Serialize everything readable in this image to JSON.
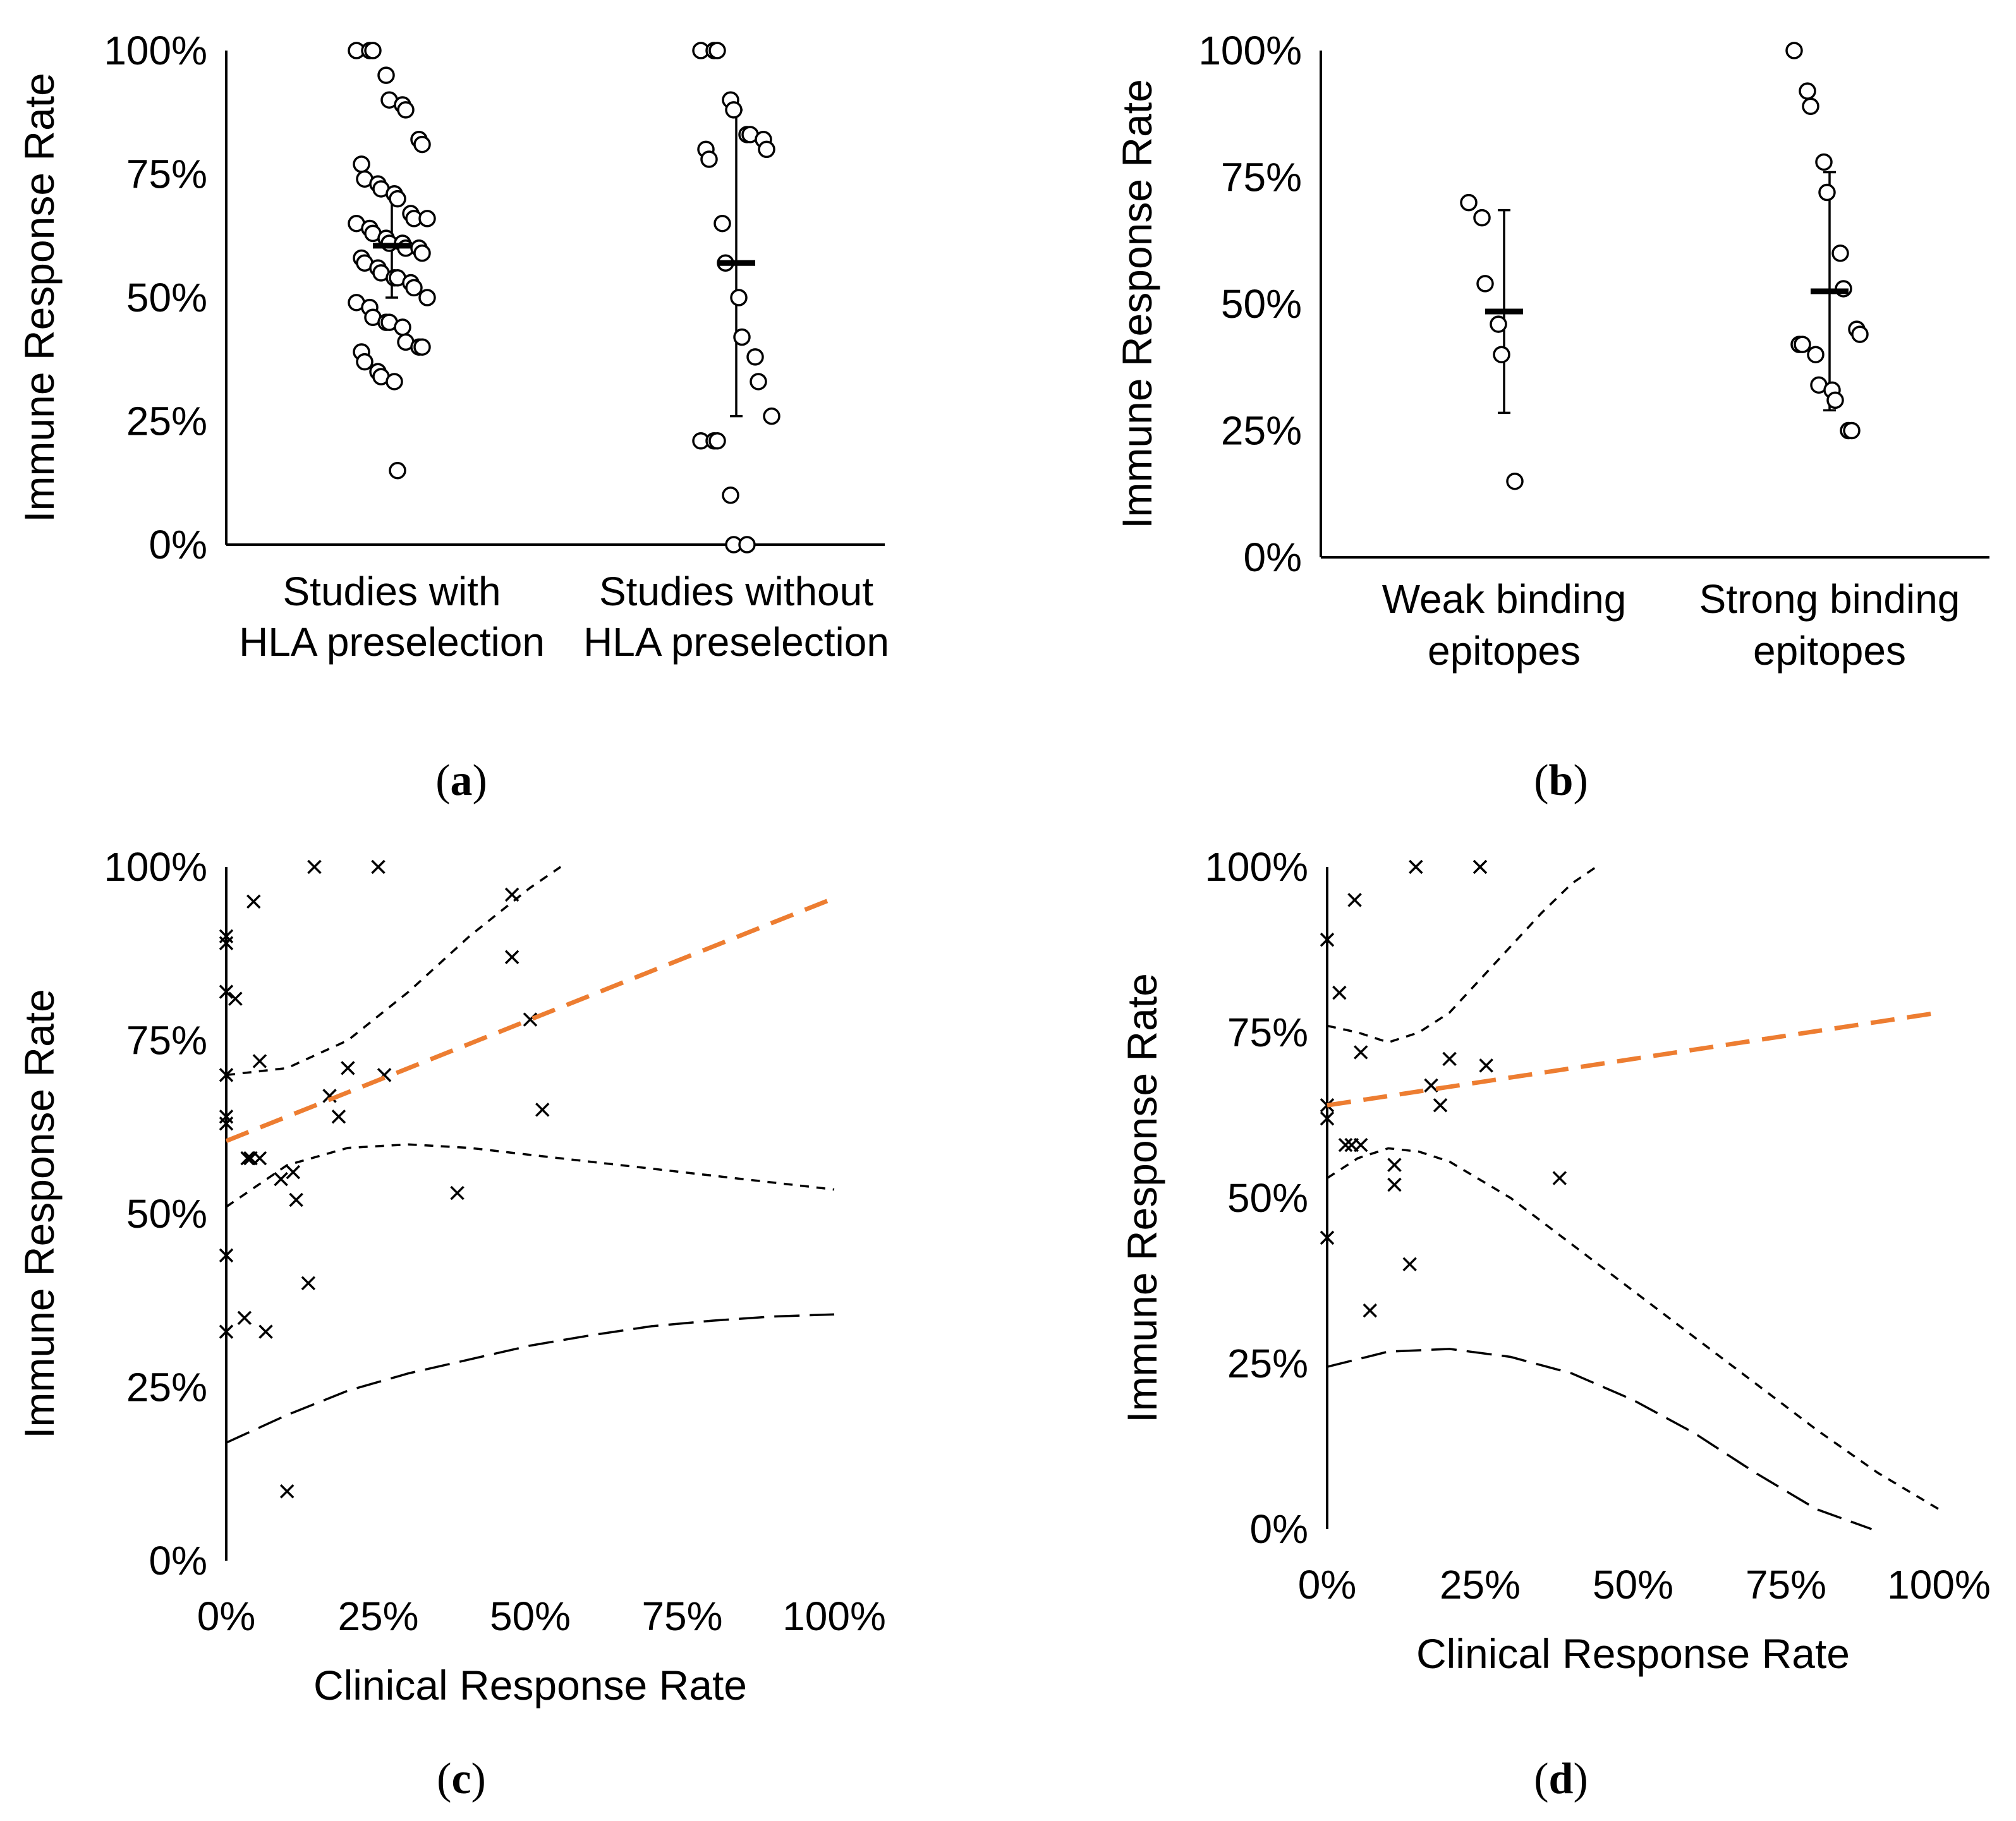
{
  "chart_data": [
    {
      "id": "a",
      "panel_label": "a",
      "type": "scatter",
      "subtype": "jittered dot plot with mean and SD",
      "ylabel": "Immune Response Rate",
      "xlabel": "",
      "ylim": [
        0,
        100
      ],
      "y_ticks": [
        "0%",
        "25%",
        "50%",
        "75%",
        "100%"
      ],
      "categories": [
        [
          "Studies with",
          "HLA preselection"
        ],
        [
          "Studies without",
          "HLA preselection"
        ]
      ],
      "groups": [
        {
          "name": "Studies with HLA preselection",
          "mean": 60.5,
          "sd_low": 50,
          "sd_high": 71,
          "values": [
            100,
            100,
            100,
            95,
            90,
            89,
            88,
            82,
            81,
            77,
            74,
            73,
            72,
            71,
            70,
            67,
            66,
            66,
            65,
            64,
            63,
            62,
            61,
            61,
            60,
            60,
            59,
            58,
            57,
            56,
            55,
            54,
            54,
            53,
            52,
            50,
            49,
            48,
            46,
            45,
            45,
            44,
            41,
            40,
            40,
            39,
            37,
            35,
            34,
            33,
            15
          ]
        },
        {
          "name": "Studies without HLA preselection",
          "mean": 57,
          "sd_low": 26,
          "sd_high": 88,
          "values": [
            100,
            100,
            100,
            90,
            88,
            83,
            83,
            82,
            80,
            80,
            78,
            65,
            57,
            50,
            42,
            38,
            33,
            26,
            21,
            21,
            21,
            10,
            0,
            0
          ]
        }
      ]
    },
    {
      "id": "b",
      "panel_label": "b",
      "type": "scatter",
      "subtype": "jittered dot plot with mean and SD",
      "ylabel": "Immune Response Rate",
      "xlabel": "",
      "ylim": [
        0,
        100
      ],
      "y_ticks": [
        "0%",
        "25%",
        "50%",
        "75%",
        "100%"
      ],
      "categories": [
        [
          "Weak binding",
          "epitopes"
        ],
        [
          "Strong binding",
          "epitopes"
        ]
      ],
      "groups": [
        {
          "name": "Weak binding epitopes",
          "mean": 48.5,
          "sd_low": 28.5,
          "sd_high": 68.5,
          "values": [
            70,
            67,
            54,
            46,
            40,
            15
          ]
        },
        {
          "name": "Strong binding epitopes",
          "mean": 52.5,
          "sd_low": 29,
          "sd_high": 76,
          "values": [
            100,
            92,
            89,
            78,
            72,
            60,
            53,
            45,
            44,
            42,
            42,
            40,
            34,
            33,
            31,
            25,
            25
          ]
        }
      ]
    },
    {
      "id": "c",
      "panel_label": "c",
      "type": "scatter",
      "subtype": "scatter with linear trend, confidence and prediction bands",
      "xlabel": "Clinical Response Rate",
      "ylabel": "Immune Response Rate",
      "xlim": [
        0,
        100
      ],
      "ylim": [
        0,
        100
      ],
      "x_ticks": [
        "0%",
        "25%",
        "50%",
        "75%",
        "100%"
      ],
      "y_ticks": [
        "0%",
        "25%",
        "50%",
        "75%",
        "100%"
      ],
      "points": [
        [
          0,
          90
        ],
        [
          0,
          89
        ],
        [
          0,
          82
        ],
        [
          0,
          70
        ],
        [
          0,
          64
        ],
        [
          0,
          63
        ],
        [
          0,
          44
        ],
        [
          0,
          33
        ],
        [
          1.5,
          81
        ],
        [
          3,
          35
        ],
        [
          3.5,
          58
        ],
        [
          4,
          58
        ],
        [
          4.5,
          95
        ],
        [
          5.5,
          72
        ],
        [
          5.5,
          58
        ],
        [
          6.5,
          33
        ],
        [
          9,
          55
        ],
        [
          10,
          10
        ],
        [
          11,
          56
        ],
        [
          11.5,
          52
        ],
        [
          13.5,
          40
        ],
        [
          14.5,
          100
        ],
        [
          17,
          67
        ],
        [
          18.5,
          64
        ],
        [
          20,
          71
        ],
        [
          25,
          100
        ],
        [
          26,
          70
        ],
        [
          38,
          53
        ],
        [
          47,
          96
        ],
        [
          47,
          87
        ],
        [
          50,
          78
        ],
        [
          52,
          65
        ]
      ],
      "trend": {
        "x": [
          0,
          100
        ],
        "y": [
          60.5,
          95.5
        ]
      },
      "ci_upper": {
        "x": [
          0,
          10,
          20,
          30,
          40,
          50,
          55
        ],
        "y": [
          70,
          71,
          75,
          82,
          90,
          97,
          100
        ]
      },
      "ci_lower": {
        "x": [
          0,
          10,
          20,
          30,
          40,
          50,
          60,
          70,
          80,
          90,
          100
        ],
        "y": [
          51,
          57,
          59.5,
          60,
          59.5,
          58.5,
          57.5,
          56.5,
          55.5,
          54.5,
          53.5
        ]
      },
      "pi_lower": {
        "x": [
          0,
          10,
          20,
          30,
          40,
          50,
          60,
          70,
          80,
          90,
          100
        ],
        "y": [
          17,
          21,
          24.5,
          27,
          29,
          31,
          32.5,
          33.8,
          34.6,
          35.2,
          35.5
        ]
      }
    },
    {
      "id": "d",
      "panel_label": "d",
      "type": "scatter",
      "subtype": "scatter with linear trend, confidence and prediction bands",
      "xlabel": "Clinical Response Rate",
      "ylabel": "Immune Response Rate",
      "xlim": [
        0,
        100
      ],
      "ylim": [
        0,
        100
      ],
      "x_ticks": [
        "0%",
        "25%",
        "50%",
        "75%",
        "100%"
      ],
      "y_ticks": [
        "0%",
        "25%",
        "50%",
        "75%",
        "100%"
      ],
      "points": [
        [
          0,
          89
        ],
        [
          0,
          64
        ],
        [
          0,
          62
        ],
        [
          0,
          44
        ],
        [
          2,
          81
        ],
        [
          3,
          58
        ],
        [
          4,
          58
        ],
        [
          4.5,
          95
        ],
        [
          5.5,
          72
        ],
        [
          5.5,
          58
        ],
        [
          7,
          33
        ],
        [
          11,
          55
        ],
        [
          11,
          52
        ],
        [
          13.5,
          40
        ],
        [
          14.5,
          100
        ],
        [
          17,
          67
        ],
        [
          18.5,
          64
        ],
        [
          20,
          71
        ],
        [
          25,
          100
        ],
        [
          26,
          70
        ],
        [
          38,
          53
        ]
      ],
      "trend": {
        "x": [
          0,
          100
        ],
        "y": [
          64,
          78
        ]
      },
      "ci_upper": {
        "x": [
          0,
          5,
          10,
          15,
          20,
          25,
          30,
          35,
          40,
          44
        ],
        "y": [
          76,
          75,
          73.5,
          75,
          78,
          83,
          88,
          93,
          97.5,
          100
        ]
      },
      "ci_lower": {
        "x": [
          0,
          5,
          10,
          15,
          20,
          30,
          40,
          50,
          60,
          70,
          80,
          90,
          100
        ],
        "y": [
          53,
          56,
          57.5,
          57,
          55.5,
          50,
          43,
          36,
          29,
          22,
          15,
          8.5,
          3
        ]
      },
      "pi_lower": {
        "x": [
          0,
          10,
          20,
          30,
          40,
          50,
          60,
          70,
          80,
          89
        ],
        "y": [
          24.5,
          26.8,
          27.2,
          26,
          23.5,
          19.5,
          14.5,
          8.5,
          3,
          0
        ]
      }
    }
  ]
}
